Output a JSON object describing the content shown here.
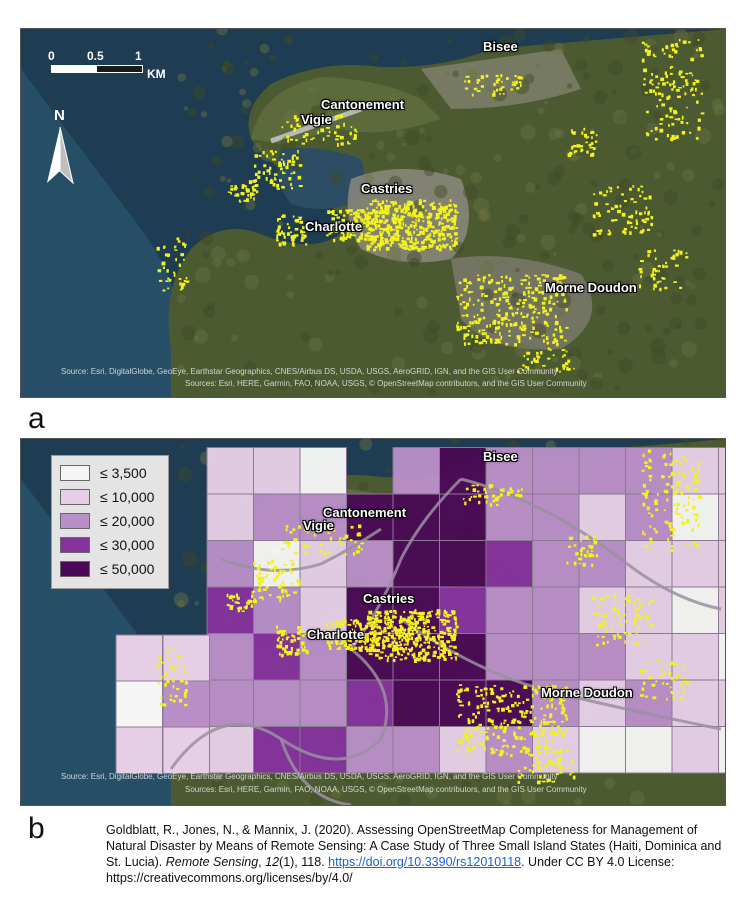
{
  "panel_a": {
    "label": "a",
    "scale": {
      "ticks": [
        "0",
        "0.5",
        "1"
      ],
      "unit": "KM"
    },
    "north_label": "N",
    "places": [
      "Bisee",
      "Cantonement",
      "Vigie",
      "Castries",
      "Charlotte",
      "Morne Doudon"
    ],
    "attribution_1": "Source: Esri, DigitalGlobe, GeoEye, Earthstar Geographics, CNES/Airbus DS, USDA, USGS, AeroGRID, IGN, and the GIS User Community",
    "attribution_2": "Sources: Esri, HERE, Garmin, FAO, NOAA, USGS, © OpenStreetMap contributors, and the GIS User Community"
  },
  "panel_b": {
    "label": "b",
    "legend": [
      {
        "label": "≤ 3,500",
        "color": "#f5f5f5"
      },
      {
        "label": "≤ 10,000",
        "color": "#e6cfe6"
      },
      {
        "label": "≤ 20,000",
        "color": "#b98fc8"
      },
      {
        "label": "≤ 30,000",
        "color": "#85339c"
      },
      {
        "label": "≤ 50,000",
        "color": "#4a0a55"
      }
    ],
    "places": [
      "Bisee",
      "Cantonement",
      "Vigie",
      "Castries",
      "Charlotte",
      "Morne Doudon"
    ],
    "attribution_1": "Source: Esri, DigitalGlobe, GeoEye, Earthstar Geographics, CNES/Airbus DS, USDA, USGS, AeroGRID, IGN, and the GIS User Community",
    "attribution_2": "Sources: Esri, HERE, Garmin, FAO, NOAA, USGS, © OpenStreetMap contributors, and the GIS User Community"
  },
  "citation": {
    "text_1": "Goldblatt, R., Jones, N., & Mannix, J. (2020). Assessing OpenStreetMap Completeness for Management of Natural Disaster by Means of Remote Sensing: A Case Study of Three Small Island States (Haiti, Dominica and St. Lucia). ",
    "journal": "Remote Sensing",
    "text_2": ", ",
    "volume": "12",
    "text_3": "(1), 118. ",
    "doi": "https://doi.org/10.3390/rs12010118",
    "text_4": ".  Under CC BY 4.0 License: https://creativecommons.org/licenses/by/4.0/"
  },
  "colors": {
    "building_highlight": "#f2f21e",
    "sea": "#1e3c52",
    "land": "#4b5a30",
    "urban": "#8c8a7e",
    "road": "#9a8fa0"
  }
}
